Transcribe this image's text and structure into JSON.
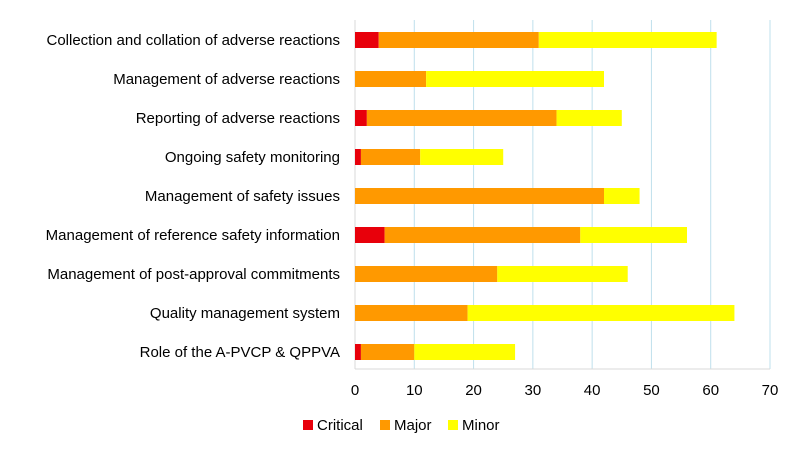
{
  "chart_data": {
    "type": "bar",
    "orientation": "horizontal",
    "stacked": true,
    "categories": [
      "Collection and collation of adverse reactions",
      "Management of adverse reactions",
      "Reporting of adverse reactions",
      "Ongoing safety monitoring",
      "Management of safety issues",
      "Management of reference safety information",
      "Management of post-approval commitments",
      "Quality management system",
      "Role of the A-PVCP & QPPVA"
    ],
    "series": [
      {
        "name": "Critical",
        "color": "#e8000b",
        "values": [
          4,
          0,
          2,
          1,
          0,
          5,
          0,
          0,
          1
        ]
      },
      {
        "name": "Major",
        "color": "#ff9900",
        "values": [
          27,
          12,
          32,
          10,
          42,
          33,
          24,
          19,
          9
        ]
      },
      {
        "name": "Minor",
        "color": "#ffff00",
        "values": [
          30,
          30,
          11,
          14,
          6,
          18,
          22,
          45,
          17
        ]
      }
    ],
    "xlim": [
      0,
      70
    ],
    "xticks": [
      "0",
      "10",
      "20",
      "30",
      "40",
      "50",
      "60",
      "70"
    ],
    "grid": "vertical",
    "gridline_color": "#bfe0ec",
    "legend_position": "bottom"
  }
}
